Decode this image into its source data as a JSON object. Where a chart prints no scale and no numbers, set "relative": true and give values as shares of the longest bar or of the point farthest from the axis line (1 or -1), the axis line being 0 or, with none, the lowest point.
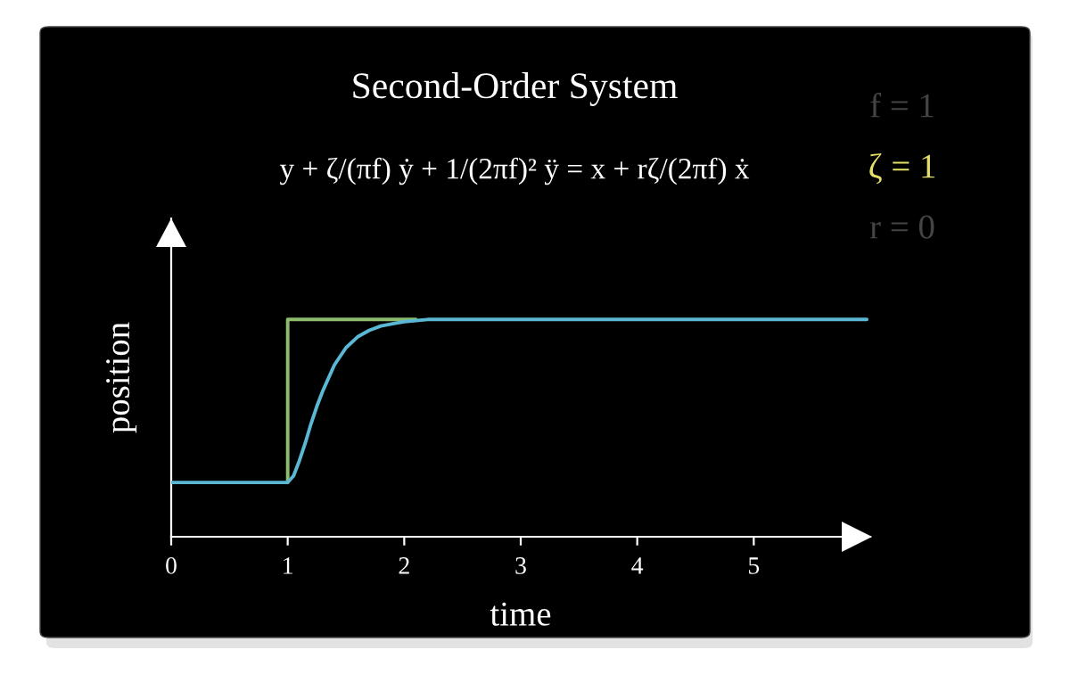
{
  "chart_data": {
    "type": "line",
    "title": "Second-Order System",
    "subtitle": "y + ζ/(πf) ẏ + 1/(2πf)² ÿ = x + rζ/(2πf) ẋ",
    "xlabel": "time",
    "ylabel": "position",
    "annotations": [
      "f = 1",
      "ζ = 1",
      "r = 0"
    ],
    "relative": true,
    "series": [
      {
        "color": "#8cbc6c",
        "x": [
          1,
          1,
          2.1
        ],
        "values": [
          0.25,
          1,
          1
        ]
      },
      {
        "color": "#5ab8d4",
        "x": [
          0,
          1,
          1.05,
          1.1,
          1.15,
          1.2,
          1.25,
          1.3,
          1.35,
          1.4,
          1.5,
          1.6,
          1.7,
          1.8,
          1.9,
          2.0,
          2.2,
          2.5,
          5.97
        ],
        "values": [
          0.25,
          0.25,
          0.28,
          0.35,
          0.43,
          0.52,
          0.6,
          0.67,
          0.73,
          0.79,
          0.87,
          0.92,
          0.95,
          0.97,
          0.98,
          0.99,
          1.0,
          1.0,
          1.0
        ]
      }
    ],
    "xlim": [
      0,
      6
    ],
    "xticks": [
      0,
      1,
      2,
      3,
      4,
      5
    ],
    "tick_labels": "x",
    "grid": false,
    "marker": "none",
    "line_style": "solid"
  }
}
